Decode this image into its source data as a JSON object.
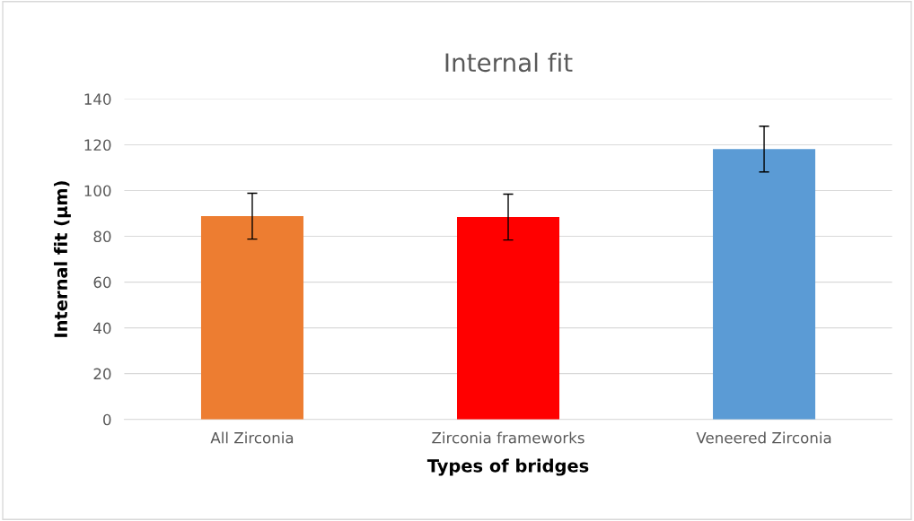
{
  "chart_data": {
    "type": "bar",
    "title": "Internal fit",
    "xlabel": "Types of bridges",
    "ylabel": "Internal fit (µm)",
    "categories": [
      "All Zirconia",
      "Zirconia frameworks",
      "Veneered Zirconia"
    ],
    "values": [
      88.8,
      88.4,
      118.1
    ],
    "colors": [
      "#ed7d31",
      "#ff0000",
      "#5b9bd5"
    ],
    "errors": [
      10,
      10,
      10
    ],
    "ylim": [
      0,
      140
    ],
    "yticks": [
      0,
      20,
      40,
      60,
      80,
      100,
      120,
      140
    ],
    "grid": "y"
  }
}
